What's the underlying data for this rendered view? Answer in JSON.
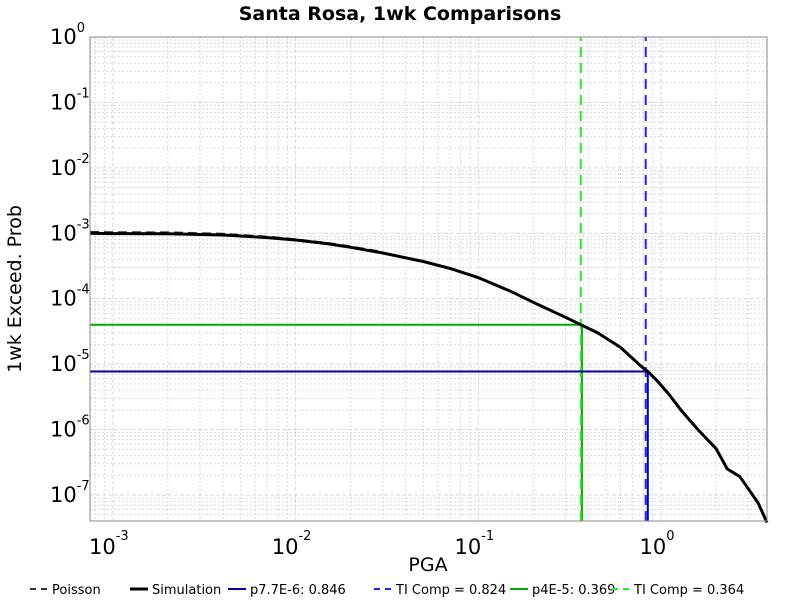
{
  "chart_data": {
    "type": "line",
    "title": "Santa Rosa, 1wk Comparisons",
    "xlabel": "PGA",
    "ylabel": "1wk Exceed. Prob",
    "x_scale": "log",
    "y_scale": "log",
    "xlim": [
      0.00075,
      3.8
    ],
    "ylim": [
      4e-08,
      1
    ],
    "x_ticks": [
      {
        "base": "10",
        "exp": "-3",
        "value": 0.001
      },
      {
        "base": "10",
        "exp": "-2",
        "value": 0.01
      },
      {
        "base": "10",
        "exp": "-1",
        "value": 0.1
      },
      {
        "base": "10",
        "exp": "0",
        "value": 1
      }
    ],
    "y_ticks": [
      {
        "base": "10",
        "exp": "0",
        "value": 1
      },
      {
        "base": "10",
        "exp": "-1",
        "value": 0.1
      },
      {
        "base": "10",
        "exp": "-2",
        "value": 0.01
      },
      {
        "base": "10",
        "exp": "-3",
        "value": 0.001
      },
      {
        "base": "10",
        "exp": "-4",
        "value": 0.0001
      },
      {
        "base": "10",
        "exp": "-5",
        "value": 1e-05
      },
      {
        "base": "10",
        "exp": "-6",
        "value": 1e-06
      },
      {
        "base": "10",
        "exp": "-7",
        "value": 1e-07
      }
    ],
    "grid": true,
    "legend_position": "bottom",
    "series": [
      {
        "name": "Poisson",
        "color": "#333333",
        "dash": "dashed",
        "x": [
          0.00075,
          0.001,
          0.002,
          0.004,
          0.007,
          0.01,
          0.015,
          0.02,
          0.03
        ],
        "y": [
          0.00105,
          0.00104,
          0.00103,
          0.00098,
          0.00089,
          0.00081,
          0.00071,
          0.00063,
          0.00052
        ]
      },
      {
        "name": "Simulation",
        "color": "#000000",
        "dash": "solid",
        "x": [
          0.00075,
          0.001,
          0.002,
          0.004,
          0.007,
          0.01,
          0.015,
          0.02,
          0.03,
          0.05,
          0.07,
          0.1,
          0.15,
          0.2,
          0.3,
          0.364,
          0.45,
          0.6,
          0.75,
          0.824,
          0.846,
          0.95,
          1.1,
          1.3,
          1.6,
          2.0,
          2.3,
          2.7,
          3.1,
          3.4,
          3.8
        ],
        "y": [
          0.001,
          0.00099,
          0.00098,
          0.00094,
          0.00086,
          0.00079,
          0.00069,
          0.00061,
          0.0005,
          0.00037,
          0.00029,
          0.00021,
          0.00013,
          8.8e-05,
          5.2e-05,
          4e-05,
          3e-05,
          1.8e-05,
          1.02e-05,
          8.1e-06,
          7.7e-06,
          5.6e-06,
          3.5e-06,
          1.9e-06,
          9.8e-07,
          5.1e-07,
          2.5e-07,
          1.9e-07,
          1.1e-07,
          7.5e-08,
          3.8e-08
        ]
      },
      {
        "name": "p7.7E-6: 0.846",
        "color": "#0000aa",
        "dash": "solid",
        "x": [
          0.00075,
          0.846,
          0.846
        ],
        "y": [
          7.7e-06,
          7.7e-06,
          4e-08
        ]
      },
      {
        "name": "TI Comp = 0.824",
        "color": "#2222ee",
        "dash": "dashed",
        "x": [
          0.824,
          0.824
        ],
        "y": [
          4e-08,
          1
        ]
      },
      {
        "name": "p4E-5: 0.369",
        "color": "#00aa00",
        "dash": "solid",
        "x": [
          0.00075,
          0.369,
          0.369
        ],
        "y": [
          4e-05,
          4e-05,
          4e-08
        ]
      },
      {
        "name": "TI Comp = 0.364",
        "color": "#22ee22",
        "dash": "dashed",
        "x": [
          0.364,
          0.364
        ],
        "y": [
          4e-08,
          1
        ]
      }
    ]
  }
}
